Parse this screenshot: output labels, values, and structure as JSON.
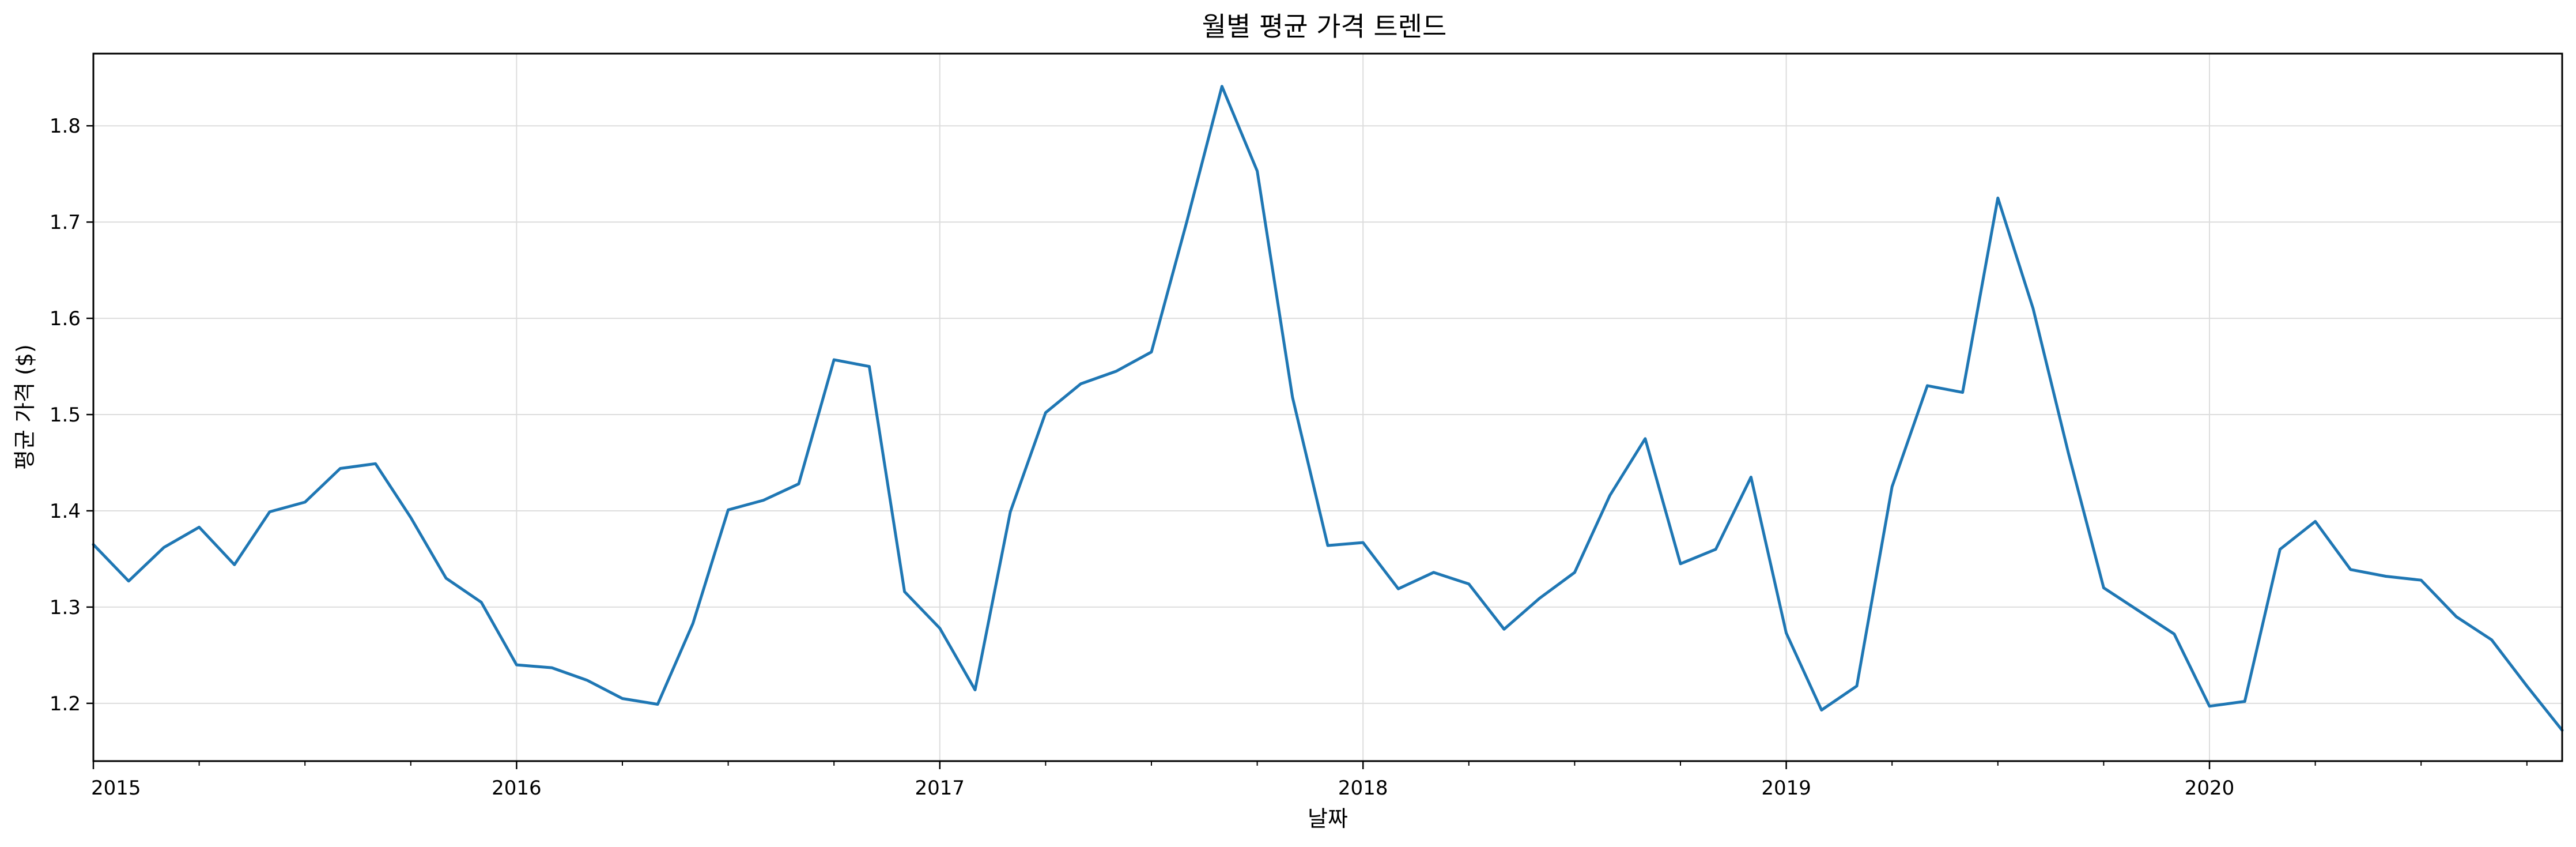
{
  "chart_data": {
    "type": "line",
    "title": "월별 평균 가격 트렌드",
    "xlabel": "날짜",
    "ylabel": "평균 가격 ($)",
    "x_tick_labels": [
      "2015",
      "2016",
      "2017",
      "2018",
      "2019",
      "2020"
    ],
    "y_tick_labels": [
      "1.2",
      "1.3",
      "1.4",
      "1.5",
      "1.6",
      "1.7",
      "1.8"
    ],
    "y_ticks": [
      1.2,
      1.3,
      1.4,
      1.5,
      1.6,
      1.7,
      1.8
    ],
    "ylim": [
      1.14,
      1.875
    ],
    "xlim": [
      "2015-01",
      "2020-11"
    ],
    "grid": true,
    "color": "#1f77b4",
    "x": [
      "2015-01",
      "2015-02",
      "2015-03",
      "2015-04",
      "2015-05",
      "2015-06",
      "2015-07",
      "2015-08",
      "2015-09",
      "2015-10",
      "2015-11",
      "2015-12",
      "2016-01",
      "2016-02",
      "2016-03",
      "2016-04",
      "2016-05",
      "2016-06",
      "2016-07",
      "2016-08",
      "2016-09",
      "2016-10",
      "2016-11",
      "2016-12",
      "2017-01",
      "2017-02",
      "2017-03",
      "2017-04",
      "2017-05",
      "2017-06",
      "2017-07",
      "2017-08",
      "2017-09",
      "2017-10",
      "2017-11",
      "2017-12",
      "2018-01",
      "2018-02",
      "2018-03",
      "2018-04",
      "2018-05",
      "2018-06",
      "2018-07",
      "2018-08",
      "2018-09",
      "2018-10",
      "2018-11",
      "2018-12",
      "2019-01",
      "2019-02",
      "2019-03",
      "2019-04",
      "2019-05",
      "2019-06",
      "2019-07",
      "2019-08",
      "2019-09",
      "2019-10",
      "2019-11",
      "2019-12",
      "2020-01",
      "2020-02",
      "2020-03",
      "2020-04",
      "2020-05",
      "2020-06",
      "2020-07",
      "2020-08",
      "2020-09",
      "2020-10",
      "2020-11"
    ],
    "values": [
      1.365,
      1.327,
      1.362,
      1.383,
      1.344,
      1.399,
      1.409,
      1.444,
      1.449,
      1.393,
      1.33,
      1.305,
      1.24,
      1.237,
      1.224,
      1.205,
      1.199,
      1.283,
      1.401,
      1.411,
      1.428,
      1.557,
      1.55,
      1.316,
      1.278,
      1.214,
      1.399,
      1.502,
      1.532,
      1.545,
      1.565,
      1.7,
      1.841,
      1.753,
      1.518,
      1.364,
      1.367,
      1.319,
      1.336,
      1.324,
      1.277,
      1.309,
      1.336,
      1.416,
      1.475,
      1.345,
      1.36,
      1.435,
      1.273,
      1.193,
      1.218,
      1.425,
      1.53,
      1.523,
      1.725,
      1.61,
      1.46,
      1.32,
      1.296,
      1.272,
      1.197,
      1.202,
      1.36,
      1.389,
      1.339,
      1.332,
      1.328,
      1.29,
      1.266,
      1.218,
      1.172
    ]
  }
}
